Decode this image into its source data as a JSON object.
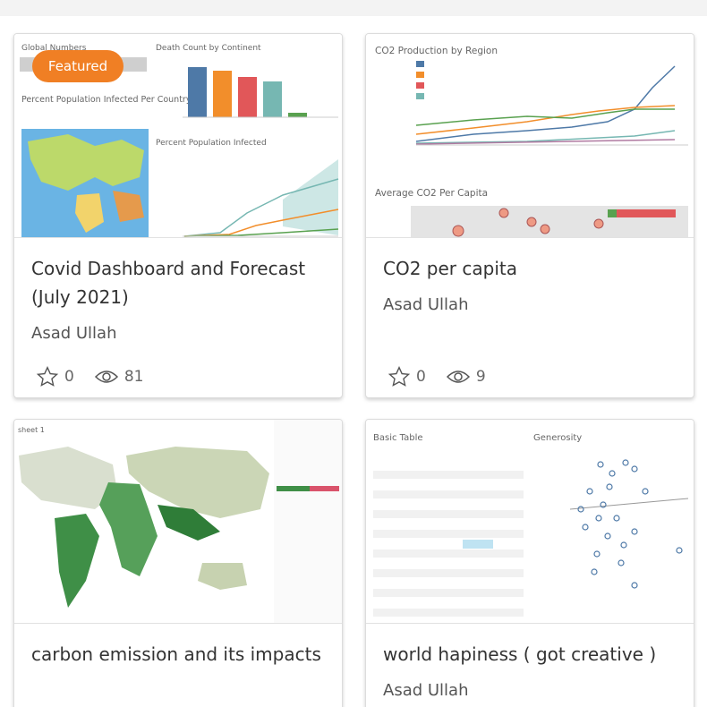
{
  "cards": [
    {
      "title": "Covid Dashboard and Forecast (July 2021)",
      "author": "Asad Ullah",
      "favorites": "0",
      "views": "81",
      "badge": "Featured",
      "thumbnail": {
        "headings": [
          "Global Numbers",
          "Death Count by Continent",
          "Percent Population Infected Per Country",
          "Percent Population Infected"
        ]
      }
    },
    {
      "title": "CO2 per capita",
      "author": "Asad Ullah",
      "favorites": "0",
      "views": "9",
      "thumbnail": {
        "headings": [
          "CO2 Production by Region",
          "Average CO2 Per Capita"
        ]
      }
    },
    {
      "title": "carbon emission and its impacts",
      "thumbnail": {
        "headings": [
          "sheet 1"
        ]
      }
    },
    {
      "title": "world hapiness ( got creative )",
      "author": "Asad Ullah",
      "thumbnail": {
        "headings": [
          "Basic Table",
          "Generosity"
        ]
      }
    }
  ]
}
